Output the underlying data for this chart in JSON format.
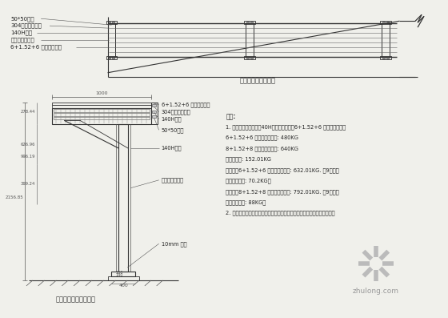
{
  "bg_color": "#f0f0eb",
  "line_color": "#444444",
  "title_top": "宣传栏反光速覆俯图",
  "title_bottom": "宣传栏反光速覆侧视图",
  "notes_title": "说明:",
  "notes": [
    "1. 支柱和落板框架采用40H系统，玻璃采用6+1.52+6 钢化夹胶玻璃。",
    "6+1.52+6 钢化夹胶重量为: 480KG",
    "8+1.52+8 钢化夹胶重量为: 640KG",
    "钢构重量为: 152.01KG",
    "如果采用6+1.52+6 落板结构重量为: 632.01KG. 每9根支柱",
    "平均每根承重: 70.2KG。",
    "如果采用8+1.52+8 落板结构重量为: 792.01KG. 每9根支柱",
    "平均每根承重: 88KG。",
    "2. 支柱底部整个周面须采用防锈油漆处理，须刷防水处理，禁止埋土过深。"
  ],
  "top_labels": [
    [
      "50*50铝管",
      100,
      23
    ],
    [
      "304不锈钢夹胶条",
      85,
      31
    ],
    [
      "140H系统",
      93,
      40
    ],
    [
      "原有不锈钢包边",
      78,
      49
    ],
    [
      "6+1.52+6 钢化夹胶玻璃",
      60,
      57
    ]
  ],
  "side_labels": [
    [
      "6+1.52+6 钢化夹胶玻璃",
      205,
      165
    ],
    [
      "304不锈钢夹胶条",
      205,
      172
    ],
    [
      "140H系统",
      205,
      180
    ],
    [
      "50*50铝管",
      205,
      195
    ],
    [
      "140H系统",
      205,
      225
    ],
    [
      "原有不锈钢包边",
      205,
      265
    ],
    [
      "10mm 钢板",
      205,
      320
    ]
  ],
  "watermark_text": "zhulong.com"
}
